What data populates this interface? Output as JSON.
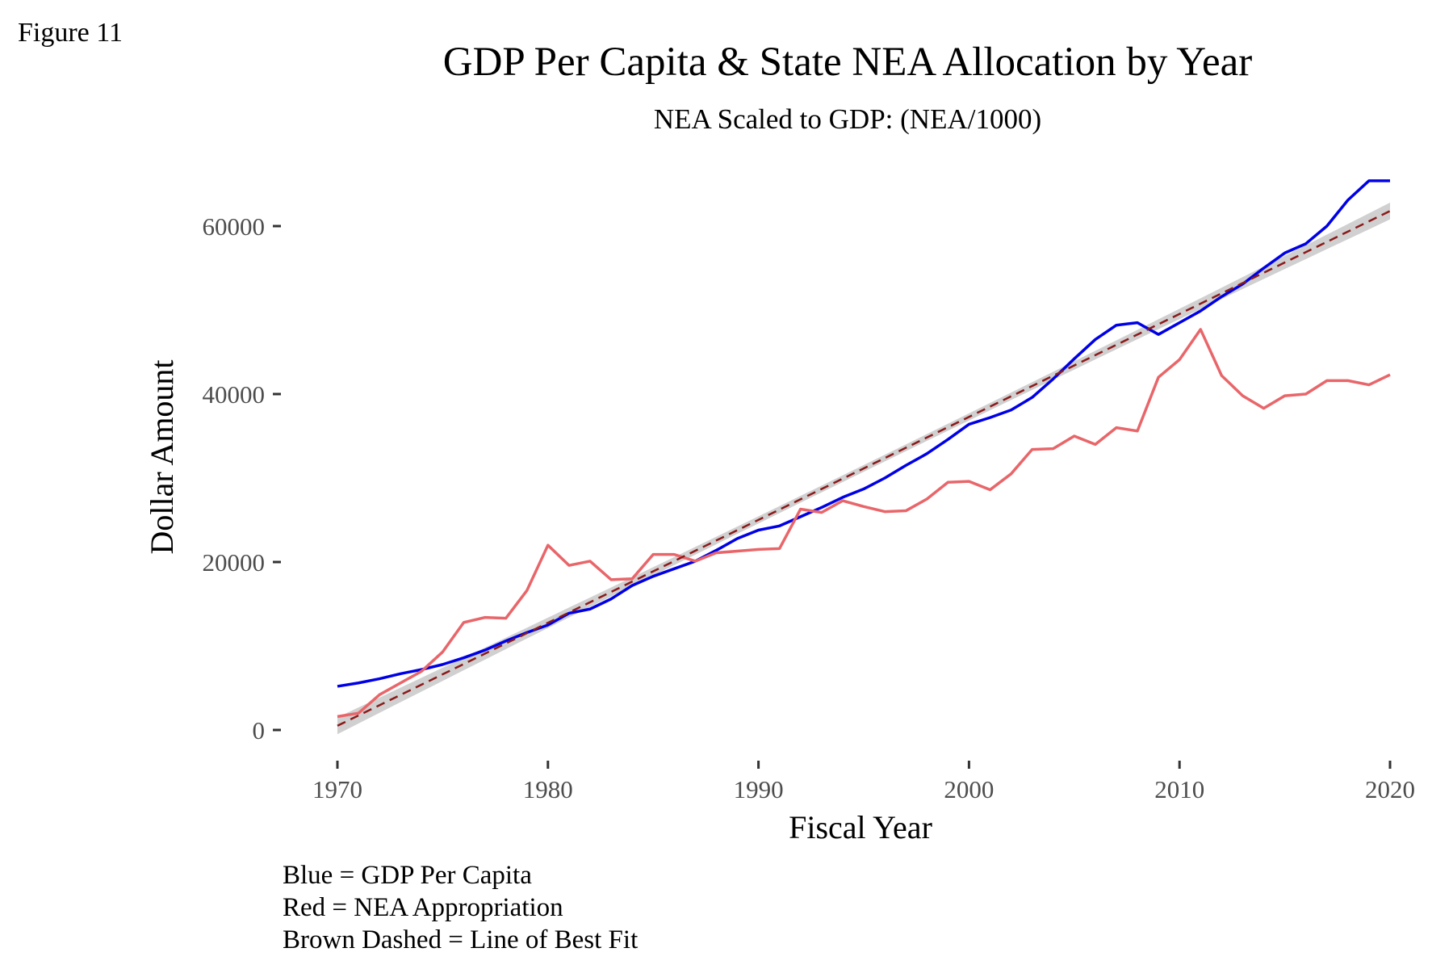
{
  "figure_label": "Figure 11",
  "caption": [
    "Blue = GDP Per Capita",
    "Red = NEA Appropriation",
    "Brown Dashed = Line of Best Fit"
  ],
  "colors": {
    "gdp": "#0000e6",
    "nea": "#e8666a",
    "fit": "#8b1a1a",
    "band": "#c8c8c8"
  },
  "chart_data": {
    "type": "line",
    "title": "GDP Per Capita & State NEA Allocation by Year",
    "subtitle": "NEA Scaled to GDP: (NEA/1000)",
    "xlabel": "Fiscal Year",
    "ylabel": "Dollar Amount",
    "xlim": [
      1970,
      2020
    ],
    "ylim": [
      0,
      65000
    ],
    "x_ticks": [
      1970,
      1980,
      1990,
      2000,
      2010,
      2020
    ],
    "y_ticks": [
      0,
      20000,
      40000,
      60000
    ],
    "grid": false,
    "x": [
      1970,
      1971,
      1972,
      1973,
      1974,
      1975,
      1976,
      1977,
      1978,
      1979,
      1980,
      1981,
      1982,
      1983,
      1984,
      1985,
      1986,
      1987,
      1988,
      1989,
      1990,
      1991,
      1992,
      1993,
      1994,
      1995,
      1996,
      1997,
      1998,
      1999,
      2000,
      2001,
      2002,
      2003,
      2004,
      2005,
      2006,
      2007,
      2008,
      2009,
      2010,
      2011,
      2012,
      2013,
      2014,
      2015,
      2016,
      2017,
      2018,
      2019,
      2020
    ],
    "series": [
      {
        "name": "GDP Per Capita",
        "color_key": "gdp",
        "values": [
          5200,
          5600,
          6100,
          6700,
          7200,
          7800,
          8600,
          9500,
          10600,
          11600,
          12500,
          13900,
          14400,
          15600,
          17200,
          18300,
          19200,
          20100,
          21400,
          22800,
          23800,
          24300,
          25400,
          26500,
          27700,
          28700,
          30000,
          31500,
          32900,
          34600,
          36400,
          37200,
          38100,
          39600,
          41800,
          44200,
          46500,
          48200,
          48500,
          47100,
          48500,
          49900,
          51600,
          53100,
          55000,
          56800,
          57900,
          60000,
          63100,
          65400,
          65400
        ]
      },
      {
        "name": "NEA Appropriation",
        "color_key": "nea",
        "values": [
          1600,
          2000,
          4200,
          5600,
          7000,
          9300,
          12800,
          13400,
          13300,
          16600,
          22000,
          19600,
          20100,
          17900,
          18000,
          20900,
          20900,
          20100,
          21100,
          21300,
          21500,
          21600,
          26300,
          25900,
          27300,
          26600,
          26000,
          26100,
          27500,
          29500,
          29600,
          28600,
          30500,
          33400,
          33500,
          35000,
          34000,
          36000,
          35600,
          42000,
          44100,
          47700,
          42200,
          39800,
          38300,
          39800,
          40000,
          41600,
          41600,
          41100,
          42300
        ]
      },
      {
        "name": "Line of Best Fit",
        "color_key": "fit",
        "dashed": true,
        "values": [
          500,
          61800
        ],
        "x": [
          1970,
          2020
        ],
        "band_halfwidth_start": 1000,
        "band_halfwidth_mid": 400,
        "band_halfwidth_end": 1000
      }
    ]
  }
}
